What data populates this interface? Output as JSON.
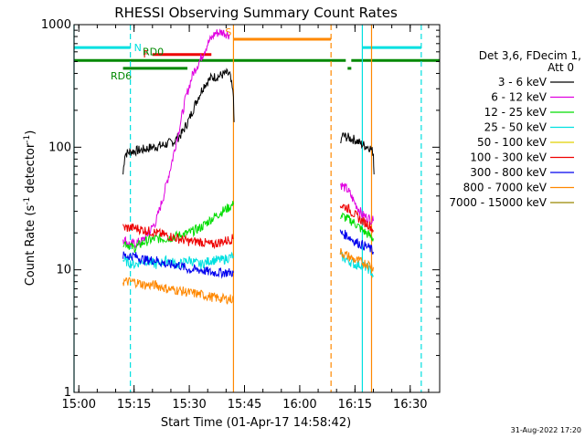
{
  "chart_data": {
    "type": "line",
    "title": "RHESSI Observing Summary Count Rates",
    "xlabel": "Start Time (01-Apr-17 14:58:42)",
    "ylabel_main": "Count Rate (s",
    "ylabel_sup1": "-1",
    "ylabel_mid": " detector",
    "ylabel_sup2": "-1",
    "ylabel_end": ")",
    "y_scale": "log",
    "xlim": [
      "14:58:42",
      "16:38:00"
    ],
    "ylim": [
      1,
      1000
    ],
    "x_ticks": [
      "15:00",
      "15:15",
      "15:30",
      "15:45",
      "16:00",
      "16:15",
      "16:30"
    ],
    "y_ticks": [
      "1",
      "10",
      "100",
      "1000"
    ],
    "legend": {
      "position": "right",
      "header1": "Det 3,6, FDecim 1,",
      "header2": "Att 0",
      "entries": [
        {
          "label": "3 - 6 keV",
          "color": "#000000"
        },
        {
          "label": "6 - 12 keV",
          "color": "#e000e0"
        },
        {
          "label": "12 - 25 keV",
          "color": "#00dd00"
        },
        {
          "label": "25 - 50 keV",
          "color": "#00e0e0"
        },
        {
          "label": "50 - 100 keV",
          "color": "#e0d000"
        },
        {
          "label": "100 - 300 keV",
          "color": "#ee0000"
        },
        {
          "label": "300 - 800 keV",
          "color": "#0000ee"
        },
        {
          "label": "800 - 7000 keV",
          "color": "#ff8800"
        },
        {
          "label": "7000 - 15000 keV",
          "color": "#998800"
        }
      ]
    },
    "series": [
      {
        "name": "3 - 6 keV",
        "color": "#000000",
        "segments": [
          [
            [
              "15:12:00",
              60
            ],
            [
              "15:12:30",
              88
            ],
            [
              "15:14",
              92
            ],
            [
              "15:17",
              95
            ],
            [
              "15:20",
              100
            ],
            [
              "15:23",
              104
            ],
            [
              "15:26",
              112
            ],
            [
              "15:28",
              130
            ],
            [
              "15:30",
              170
            ],
            [
              "15:32",
              240
            ],
            [
              "15:34",
              320
            ],
            [
              "15:36",
              370
            ],
            [
              "15:38",
              380
            ],
            [
              "15:40",
              400
            ],
            [
              "15:41",
              390
            ],
            [
              "15:42:00",
              260
            ],
            [
              "15:42:10",
              160
            ]
          ],
          [
            [
              "16:11:00",
              100
            ],
            [
              "16:11:30",
              125
            ],
            [
              "16:13",
              120
            ],
            [
              "16:15",
              115
            ],
            [
              "16:17",
              105
            ],
            [
              "16:19",
              100
            ],
            [
              "16:20:00",
              90
            ],
            [
              "16:20:10",
              60
            ]
          ]
        ]
      },
      {
        "name": "6 - 12 keV",
        "color": "#e000e0",
        "segments": [
          [
            [
              "15:12:00",
              18
            ],
            [
              "15:14",
              16
            ],
            [
              "15:17",
              17
            ],
            [
              "15:19",
              20
            ],
            [
              "15:21",
              25
            ],
            [
              "15:23",
              40
            ],
            [
              "15:25",
              70
            ],
            [
              "15:27",
              130
            ],
            [
              "15:29",
              250
            ],
            [
              "15:31",
              400
            ],
            [
              "15:33",
              520
            ],
            [
              "15:35",
              700
            ],
            [
              "15:37",
              850
            ],
            [
              "15:39",
              870
            ],
            [
              "15:41",
              820
            ]
          ],
          [
            [
              "16:11:00",
              50
            ],
            [
              "16:13",
              45
            ],
            [
              "16:15",
              35
            ],
            [
              "16:17",
              28
            ],
            [
              "16:19",
              26
            ],
            [
              "16:20:00",
              25
            ]
          ]
        ]
      },
      {
        "name": "12 - 25 keV",
        "color": "#00dd00",
        "segments": [
          [
            [
              "15:12:00",
              17
            ],
            [
              "15:15",
              15
            ],
            [
              "15:18",
              17
            ],
            [
              "15:21",
              18
            ],
            [
              "15:24",
              18
            ],
            [
              "15:27",
              19
            ],
            [
              "15:30",
              20
            ],
            [
              "15:33",
              22
            ],
            [
              "15:36",
              26
            ],
            [
              "15:39",
              30
            ],
            [
              "15:42",
              34
            ]
          ],
          [
            [
              "16:11:00",
              28
            ],
            [
              "16:13",
              26
            ],
            [
              "16:15",
              24
            ],
            [
              "16:17",
              21
            ],
            [
              "16:19",
              19
            ],
            [
              "16:20:00",
              18
            ]
          ]
        ]
      },
      {
        "name": "25 - 50 keV",
        "color": "#00e0e0",
        "segments": [
          [
            [
              "15:12:00",
              12
            ],
            [
              "15:15",
              11
            ],
            [
              "15:18",
              12
            ],
            [
              "15:21",
              11
            ],
            [
              "15:24",
              12
            ],
            [
              "15:27",
              11
            ],
            [
              "15:30",
              12
            ],
            [
              "15:33",
              11
            ],
            [
              "15:36",
              12
            ],
            [
              "15:39",
              12
            ],
            [
              "15:42",
              13
            ]
          ],
          [
            [
              "16:11:00",
              13
            ],
            [
              "16:13",
              12
            ],
            [
              "16:15",
              11
            ],
            [
              "16:17",
              11
            ],
            [
              "16:19",
              10
            ],
            [
              "16:20:00",
              9
            ]
          ]
        ]
      },
      {
        "name": "100 - 300 keV",
        "color": "#ee0000",
        "segments": [
          [
            [
              "15:12:00",
              22
            ],
            [
              "15:15",
              22
            ],
            [
              "15:18",
              21
            ],
            [
              "15:21",
              20
            ],
            [
              "15:24",
              19
            ],
            [
              "15:27",
              18
            ],
            [
              "15:30",
              17
            ],
            [
              "15:33",
              17
            ],
            [
              "15:36",
              16
            ],
            [
              "15:39",
              17
            ],
            [
              "15:42",
              18
            ]
          ],
          [
            [
              "16:11:00",
              34
            ],
            [
              "16:13",
              32
            ],
            [
              "16:15",
              28
            ],
            [
              "16:17",
              25
            ],
            [
              "16:19",
              23
            ],
            [
              "16:20:00",
              21
            ]
          ]
        ]
      },
      {
        "name": "300 - 800 keV",
        "color": "#0000ee",
        "segments": [
          [
            [
              "15:12:00",
              13
            ],
            [
              "15:15",
              13
            ],
            [
              "15:18",
              12
            ],
            [
              "15:21",
              12
            ],
            [
              "15:24",
              11
            ],
            [
              "15:27",
              11
            ],
            [
              "15:30",
              10
            ],
            [
              "15:33",
              10
            ],
            [
              "15:36",
              9.5
            ],
            [
              "15:39",
              9.5
            ],
            [
              "15:42",
              9.5
            ]
          ],
          [
            [
              "16:11:00",
              20
            ],
            [
              "16:13",
              19
            ],
            [
              "16:15",
              17
            ],
            [
              "16:17",
              16
            ],
            [
              "16:19",
              15
            ],
            [
              "16:20:00",
              14
            ]
          ]
        ]
      },
      {
        "name": "800 - 7000 keV",
        "color": "#ff8800",
        "segments": [
          [
            [
              "15:12:00",
              8
            ],
            [
              "15:15",
              8
            ],
            [
              "15:18",
              7.5
            ],
            [
              "15:21",
              7.5
            ],
            [
              "15:24",
              7
            ],
            [
              "15:27",
              6.8
            ],
            [
              "15:30",
              6.5
            ],
            [
              "15:33",
              6.3
            ],
            [
              "15:36",
              6
            ],
            [
              "15:39",
              5.8
            ],
            [
              "15:42",
              5.8
            ]
          ],
          [
            [
              "16:11:00",
              14
            ],
            [
              "16:13",
              13
            ],
            [
              "16:15",
              12
            ],
            [
              "16:17",
              11.5
            ],
            [
              "16:19",
              11
            ],
            [
              "16:20:00",
              10.5
            ]
          ]
        ]
      }
    ],
    "flag_bars": [
      {
        "label": "N",
        "color": "#00e0e0",
        "y": 650,
        "ranges": [
          [
            "14:58:42",
            "15:14:00"
          ],
          [
            "16:17:00",
            "16:33:00"
          ]
        ]
      },
      {
        "label": "S",
        "color": "#ff8800",
        "y": 760,
        "ranges": [
          [
            "15:42:00",
            "16:08:30"
          ]
        ]
      },
      {
        "label": "F",
        "color": "#ee0000",
        "y": 570,
        "ranges": [
          [
            "15:20:00",
            "15:36:00"
          ]
        ]
      },
      {
        "label": "RD0",
        "color": "#008800",
        "y": 510,
        "ranges": [
          [
            "14:58:42",
            "16:12:30"
          ],
          [
            "16:14:00",
            "16:38:00"
          ]
        ]
      },
      {
        "label": "RD6",
        "color": "#008800",
        "y": 440,
        "ranges": [
          [
            "15:12:00",
            "15:29:30"
          ],
          [
            "16:13:00",
            "16:14:00"
          ]
        ]
      }
    ],
    "vlines": [
      {
        "x": "14:58:42",
        "color": "#00e0e0",
        "style": "solid"
      },
      {
        "x": "15:14:00",
        "color": "#00e0e0",
        "style": "dashed"
      },
      {
        "x": "15:42:00",
        "color": "#ff8800",
        "style": "solid"
      },
      {
        "x": "16:08:30",
        "color": "#ff8800",
        "style": "dashed"
      },
      {
        "x": "16:17:00",
        "color": "#00e0e0",
        "style": "solid"
      },
      {
        "x": "16:19:30",
        "color": "#ff8800",
        "style": "solid"
      },
      {
        "x": "16:33:00",
        "color": "#00e0e0",
        "style": "dashed"
      }
    ]
  },
  "footer_date": "31-Aug-2022 17:20"
}
